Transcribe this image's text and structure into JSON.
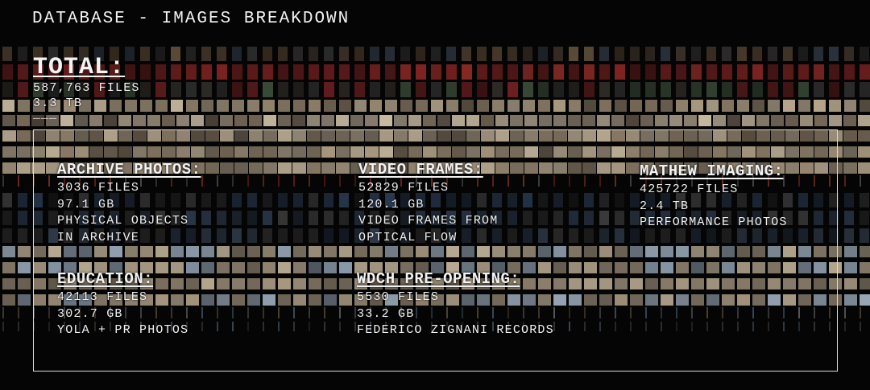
{
  "title": "DATABASE - IMAGES BREAKDOWN",
  "total": {
    "heading": "TOTAL:",
    "files": "587,763 FILES",
    "size": "3.3 TB",
    "divider": "___"
  },
  "sections": [
    {
      "heading": "ARCHIVE PHOTOS:",
      "files": "3036 FILES",
      "size": "97.1 GB",
      "desc1": "PHYSICAL OBJECTS",
      "desc2": "IN ARCHIVE"
    },
    {
      "heading": "VIDEO FRAMES:",
      "files": "52829 FILES",
      "size": "120.1 GB",
      "desc1": "VIDEO FRAMES FROM",
      "desc2": "OPTICAL FLOW"
    },
    {
      "heading": "MATHEW IMAGING:",
      "files": "425722 FILES",
      "size": "2.4 TB",
      "desc1": "PERFORMANCE PHOTOS"
    },
    {
      "heading": "EDUCATION:",
      "files": "42113 FILES",
      "size": "302.7 GB",
      "desc1": "YOLA + PR PHOTOS"
    },
    {
      "heading": "WDCH PRE-OPENING:",
      "files": "5530 FILES",
      "size": "33.2 GB",
      "desc1": "FEDERICO ZIGNANI RECORDS"
    }
  ],
  "colors": {
    "background": "#050505",
    "text": "#f2f2f2",
    "red_tiles": "#7a1e1e",
    "beige_tiles": "#b9ab93",
    "blue_tiles": "#2a3a52"
  }
}
